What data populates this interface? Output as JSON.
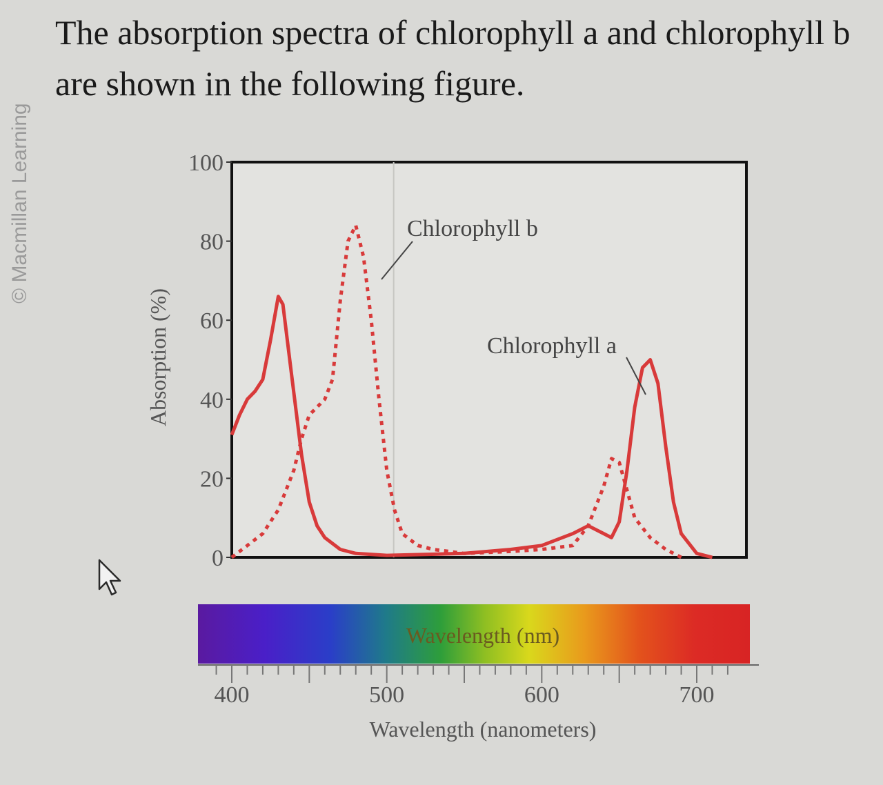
{
  "watermark": "© Macmillan Learning",
  "question": {
    "line1": "The absorption spectra of chlorophyll a and chlorophyll b",
    "line2": "are shown in the following figure."
  },
  "colors": {
    "curve": "#d83a3a",
    "frame": "#111111"
  },
  "chart_data": {
    "type": "line",
    "xlabel": "Wavelength (nanometers)",
    "ylabel": "Absorption (%)",
    "spectrum_label": "Wavelength (nm)",
    "xlim": [
      400,
      725
    ],
    "ylim": [
      0,
      100
    ],
    "x_ticks": [
      400,
      500,
      600,
      700
    ],
    "y_ticks": [
      0,
      20,
      40,
      60,
      80,
      100
    ],
    "grid": false,
    "series": [
      {
        "name": "Chlorophyll a",
        "style": "solid",
        "points": [
          [
            400,
            31
          ],
          [
            405,
            36
          ],
          [
            410,
            40
          ],
          [
            415,
            42
          ],
          [
            420,
            45
          ],
          [
            425,
            55
          ],
          [
            430,
            66
          ],
          [
            433,
            64
          ],
          [
            438,
            48
          ],
          [
            445,
            26
          ],
          [
            450,
            14
          ],
          [
            455,
            8
          ],
          [
            460,
            5
          ],
          [
            470,
            2
          ],
          [
            480,
            1
          ],
          [
            500,
            0.5
          ],
          [
            550,
            1
          ],
          [
            580,
            2
          ],
          [
            600,
            3
          ],
          [
            620,
            6
          ],
          [
            630,
            8
          ],
          [
            640,
            6
          ],
          [
            645,
            5
          ],
          [
            650,
            9
          ],
          [
            655,
            22
          ],
          [
            660,
            38
          ],
          [
            665,
            48
          ],
          [
            670,
            50
          ],
          [
            675,
            44
          ],
          [
            680,
            28
          ],
          [
            685,
            14
          ],
          [
            690,
            6
          ],
          [
            700,
            1
          ],
          [
            710,
            0
          ]
        ]
      },
      {
        "name": "Chlorophyll b",
        "style": "dotted",
        "points": [
          [
            400,
            0
          ],
          [
            410,
            3
          ],
          [
            420,
            6
          ],
          [
            430,
            12
          ],
          [
            440,
            22
          ],
          [
            445,
            30
          ],
          [
            450,
            36
          ],
          [
            455,
            38
          ],
          [
            460,
            40
          ],
          [
            465,
            45
          ],
          [
            470,
            65
          ],
          [
            475,
            80
          ],
          [
            480,
            84
          ],
          [
            485,
            76
          ],
          [
            490,
            60
          ],
          [
            495,
            40
          ],
          [
            500,
            22
          ],
          [
            505,
            12
          ],
          [
            510,
            6
          ],
          [
            520,
            3
          ],
          [
            530,
            2
          ],
          [
            550,
            1
          ],
          [
            580,
            1.5
          ],
          [
            600,
            2
          ],
          [
            620,
            3
          ],
          [
            630,
            8
          ],
          [
            640,
            18
          ],
          [
            645,
            25
          ],
          [
            650,
            24
          ],
          [
            655,
            17
          ],
          [
            660,
            10
          ],
          [
            670,
            5
          ],
          [
            680,
            2
          ],
          [
            690,
            0
          ]
        ]
      }
    ]
  }
}
